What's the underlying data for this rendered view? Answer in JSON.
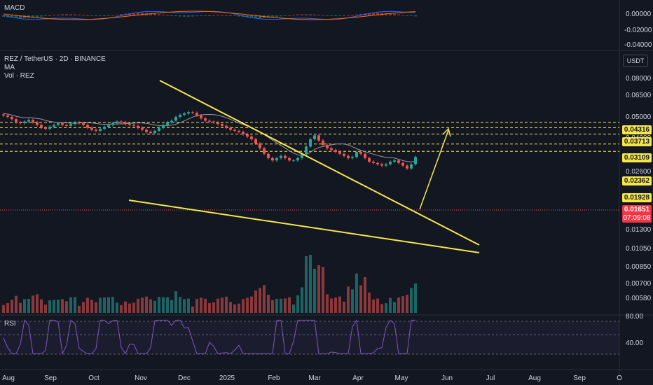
{
  "macd_pane": {
    "label": "MACD",
    "ticks": [
      "0.00000",
      "-0.02000",
      "-0.04000"
    ]
  },
  "price_pane": {
    "symbol_title": "REZ / TetherUS · 2D · BINANCE",
    "ma_label": "MA",
    "vol_label": "Vol · REZ",
    "currency_button": "USDT",
    "price_ticks": [
      "0.08000",
      "0.06500",
      "0.05000",
      "0.04000",
      "0.03200",
      "0.02600",
      "0.02100",
      "0.01600",
      "0.01300",
      "0.01050",
      "0.00850",
      "0.00700",
      "0.00580"
    ],
    "levels": [
      "0.04316",
      "0.03713",
      "0.03109",
      "0.02362",
      "0.01928"
    ],
    "current_price": "0.01651",
    "countdown": "07:09:08"
  },
  "rsi_pane": {
    "label": "RSI",
    "ticks": [
      "80.00",
      "40.00"
    ]
  },
  "time_axis": [
    "Aug",
    "Sep",
    "Oct",
    "Nov",
    "Dec",
    "2025",
    "Feb",
    "Mar",
    "Apr",
    "May",
    "Jun",
    "Jul",
    "Aug",
    "Sep",
    "O"
  ],
  "colors": {
    "background": "#131722",
    "up": "#26a69a",
    "down": "#ef5350",
    "trendline": "#f5e74a",
    "ma": "#9598a1",
    "rsi": "#7e57c2",
    "macd": "#2962ff",
    "signal": "#ff6d00"
  },
  "chart_data": {
    "type": "candlestick",
    "price_series": [
      0.052,
      0.05,
      0.047,
      0.043,
      0.042,
      0.044,
      0.046,
      0.043,
      0.04,
      0.037,
      0.036,
      0.038,
      0.04,
      0.042,
      0.04,
      0.039,
      0.041,
      0.043,
      0.042,
      0.04,
      0.037,
      0.035,
      0.034,
      0.036,
      0.038,
      0.04,
      0.042,
      0.044,
      0.043,
      0.041,
      0.04,
      0.039,
      0.037,
      0.035,
      0.033,
      0.032,
      0.034,
      0.037,
      0.04,
      0.043,
      0.045,
      0.05,
      0.053,
      0.055,
      0.057,
      0.056,
      0.052,
      0.048,
      0.045,
      0.044,
      0.043,
      0.041,
      0.039,
      0.037,
      0.035,
      0.034,
      0.033,
      0.031,
      0.029,
      0.027,
      0.024,
      0.021,
      0.018,
      0.016,
      0.015,
      0.016,
      0.017,
      0.016,
      0.015,
      0.015,
      0.016,
      0.018,
      0.022,
      0.027,
      0.03,
      0.026,
      0.023,
      0.021,
      0.02,
      0.019,
      0.018,
      0.017,
      0.016,
      0.0165,
      0.019,
      0.018,
      0.016,
      0.0145,
      0.014,
      0.0135,
      0.013,
      0.0135,
      0.0145,
      0.015,
      0.014,
      0.013,
      0.012,
      0.0135,
      0.0165
    ],
    "levels": [
      0.04316,
      0.03713,
      0.03109,
      0.02362,
      0.01928
    ],
    "current_price": 0.01651,
    "rsi_ticks": [
      80,
      40
    ]
  }
}
